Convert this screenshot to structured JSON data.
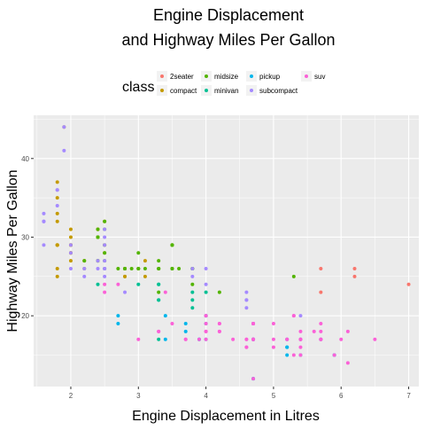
{
  "chart_data": {
    "type": "scatter",
    "title_lines": [
      "Engine Displacement",
      "and Highway Miles Per Gallon"
    ],
    "xlabel": "Engine Displacement in Litres",
    "ylabel": "Highway Miles Per Gallon",
    "xlim": [
      1.45,
      7.15
    ],
    "ylim": [
      11,
      45.5
    ],
    "x_ticks": [
      2,
      3,
      4,
      5,
      6,
      7
    ],
    "y_ticks": [
      20,
      30,
      40
    ],
    "grid": true,
    "legend": {
      "title": "class",
      "position": "top"
    },
    "series": [
      {
        "name": "2seater",
        "color": "#F8766D",
        "points": [
          [
            5.7,
            26
          ],
          [
            5.7,
            23
          ],
          [
            6.2,
            26
          ],
          [
            6.2,
            25
          ],
          [
            7.0,
            24
          ]
        ]
      },
      {
        "name": "compact",
        "color": "#C49A00",
        "points": [
          [
            1.8,
            29
          ],
          [
            1.8,
            29
          ],
          [
            2.0,
            31
          ],
          [
            2.0,
            30
          ],
          [
            2.8,
            26
          ],
          [
            2.8,
            26
          ],
          [
            3.1,
            27
          ],
          [
            1.8,
            26
          ],
          [
            1.8,
            25
          ],
          [
            2.0,
            28
          ],
          [
            2.0,
            27
          ],
          [
            2.8,
            25
          ],
          [
            2.8,
            25
          ],
          [
            3.1,
            25
          ],
          [
            2.2,
            26
          ],
          [
            2.2,
            27
          ],
          [
            2.4,
            30
          ],
          [
            2.4,
            31
          ],
          [
            3.0,
            26
          ],
          [
            1.8,
            29
          ],
          [
            1.8,
            29
          ],
          [
            2.0,
            28
          ],
          [
            2.0,
            29
          ],
          [
            2.8,
            26
          ],
          [
            1.9,
            44
          ],
          [
            2.0,
            29
          ],
          [
            2.5,
            29
          ],
          [
            1.8,
            37
          ],
          [
            1.8,
            35
          ],
          [
            2.0,
            29
          ],
          [
            1.8,
            33
          ],
          [
            1.8,
            32
          ],
          [
            2.0,
            29
          ],
          [
            2.0,
            28
          ],
          [
            2.0,
            29
          ],
          [
            2.4,
            27
          ],
          [
            2.4,
            31
          ],
          [
            2.5,
            32
          ],
          [
            2.5,
            28
          ]
        ]
      },
      {
        "name": "midsize",
        "color": "#53B400",
        "points": [
          [
            2.4,
            27
          ],
          [
            2.4,
            30
          ],
          [
            3.1,
            26
          ],
          [
            3.5,
            29
          ],
          [
            3.6,
            26
          ],
          [
            2.4,
            30
          ],
          [
            3.0,
            26
          ],
          [
            3.3,
            26
          ],
          [
            3.3,
            26
          ],
          [
            3.3,
            27
          ],
          [
            3.8,
            26
          ],
          [
            3.8,
            24
          ],
          [
            3.8,
            26
          ],
          [
            5.3,
            25
          ],
          [
            2.4,
            31
          ],
          [
            2.5,
            27
          ],
          [
            2.5,
            26
          ],
          [
            3.5,
            26
          ],
          [
            3.5,
            29
          ],
          [
            3.0,
            28
          ],
          [
            3.5,
            26
          ],
          [
            3.5,
            29
          ],
          [
            3.3,
            26
          ],
          [
            3.8,
            26
          ],
          [
            2.2,
            27
          ],
          [
            2.4,
            30
          ],
          [
            3.0,
            26
          ],
          [
            3.5,
            26
          ],
          [
            2.5,
            32
          ],
          [
            2.5,
            29
          ],
          [
            2.8,
            26
          ],
          [
            2.7,
            26
          ],
          [
            3.5,
            29
          ],
          [
            3.8,
            26
          ],
          [
            2.4,
            27
          ],
          [
            2.9,
            26
          ],
          [
            3.3,
            23
          ],
          [
            2.5,
            28
          ],
          [
            2.5,
            31
          ],
          [
            2.8,
            26
          ],
          [
            4.2,
            23
          ]
        ]
      },
      {
        "name": "minivan",
        "color": "#00C094",
        "points": [
          [
            2.4,
            24
          ],
          [
            3.0,
            24
          ],
          [
            3.3,
            22
          ],
          [
            3.3,
            22
          ],
          [
            3.3,
            24
          ],
          [
            3.3,
            24
          ],
          [
            3.3,
            17
          ],
          [
            3.8,
            22
          ],
          [
            3.8,
            21
          ],
          [
            3.8,
            23
          ],
          [
            4.0,
            23
          ]
        ]
      },
      {
        "name": "pickup",
        "color": "#00B6EB",
        "points": [
          [
            3.7,
            19
          ],
          [
            3.7,
            18
          ],
          [
            3.9,
            17
          ],
          [
            3.9,
            17
          ],
          [
            4.7,
            19
          ],
          [
            4.7,
            19
          ],
          [
            4.7,
            12
          ],
          [
            5.2,
            17
          ],
          [
            5.2,
            15
          ],
          [
            5.7,
            17
          ],
          [
            5.9,
            15
          ],
          [
            4.7,
            17
          ],
          [
            4.7,
            17
          ],
          [
            4.7,
            12
          ],
          [
            4.7,
            17
          ],
          [
            4.7,
            17
          ],
          [
            5.2,
            16
          ],
          [
            5.2,
            16
          ],
          [
            5.9,
            15
          ],
          [
            4.0,
            20
          ],
          [
            4.0,
            20
          ],
          [
            4.0,
            19
          ],
          [
            4.0,
            17
          ],
          [
            4.7,
            17
          ],
          [
            4.7,
            17
          ],
          [
            4.7,
            17
          ],
          [
            5.4,
            17
          ],
          [
            5.4,
            15
          ],
          [
            2.7,
            20
          ],
          [
            2.7,
            19
          ],
          [
            3.4,
            20
          ],
          [
            3.4,
            17
          ]
        ]
      },
      {
        "name": "subcompact",
        "color": "#A58AFF",
        "points": [
          [
            3.8,
            26
          ],
          [
            3.8,
            25
          ],
          [
            4.0,
            26
          ],
          [
            4.0,
            24
          ],
          [
            4.6,
            21
          ],
          [
            4.6,
            22
          ],
          [
            4.6,
            23
          ],
          [
            4.6,
            22
          ],
          [
            5.4,
            20
          ],
          [
            1.6,
            33
          ],
          [
            1.6,
            32
          ],
          [
            1.6,
            32
          ],
          [
            1.6,
            29
          ],
          [
            1.6,
            32
          ],
          [
            1.8,
            34
          ],
          [
            1.8,
            36
          ],
          [
            1.8,
            36
          ],
          [
            2.0,
            29
          ],
          [
            2.4,
            26
          ],
          [
            2.4,
            27
          ],
          [
            2.5,
            30
          ],
          [
            2.5,
            31
          ],
          [
            2.5,
            26
          ],
          [
            2.5,
            26
          ],
          [
            2.2,
            26
          ],
          [
            2.2,
            25
          ],
          [
            2.5,
            27
          ],
          [
            2.5,
            25
          ],
          [
            1.9,
            44
          ],
          [
            1.9,
            41
          ],
          [
            2.0,
            28
          ],
          [
            2.0,
            26
          ],
          [
            2.5,
            29
          ],
          [
            2.8,
            23
          ]
        ]
      },
      {
        "name": "suv",
        "color": "#FB61D7",
        "points": [
          [
            5.3,
            20
          ],
          [
            5.3,
            15
          ],
          [
            5.3,
            20
          ],
          [
            5.7,
            17
          ],
          [
            6.0,
            17
          ],
          [
            5.7,
            19
          ],
          [
            6.5,
            17
          ],
          [
            4.7,
            17
          ],
          [
            4.7,
            19
          ],
          [
            4.7,
            17
          ],
          [
            5.4,
            17
          ],
          [
            5.4,
            16
          ],
          [
            3.0,
            17
          ],
          [
            3.7,
            17
          ],
          [
            4.0,
            17
          ],
          [
            4.7,
            19
          ],
          [
            4.7,
            17
          ],
          [
            4.7,
            17
          ],
          [
            5.2,
            17
          ],
          [
            5.7,
            17
          ],
          [
            6.1,
            18
          ],
          [
            4.0,
            18
          ],
          [
            4.6,
            17
          ],
          [
            5.0,
            17
          ],
          [
            4.2,
            19
          ],
          [
            4.2,
            18
          ],
          [
            4.6,
            17
          ],
          [
            5.4,
            17
          ],
          [
            5.4,
            15
          ],
          [
            5.6,
            18
          ],
          [
            6.1,
            14
          ],
          [
            4.0,
            20
          ],
          [
            4.0,
            19
          ],
          [
            4.6,
            16
          ],
          [
            5.0,
            16
          ],
          [
            5.0,
            19
          ],
          [
            4.2,
            18
          ],
          [
            4.2,
            19
          ],
          [
            4.4,
            17
          ],
          [
            4.7,
            19
          ],
          [
            4.7,
            17
          ],
          [
            5.7,
            18
          ],
          [
            2.5,
            23
          ],
          [
            2.5,
            24
          ],
          [
            3.3,
            18
          ],
          [
            3.5,
            19
          ],
          [
            3.3,
            18
          ],
          [
            4.0,
            18
          ],
          [
            4.0,
            20
          ],
          [
            4.7,
            19
          ],
          [
            4.7,
            12
          ],
          [
            3.7,
            17
          ],
          [
            3.9,
            17
          ],
          [
            5.2,
            17
          ],
          [
            5.7,
            17
          ],
          [
            5.9,
            15
          ],
          [
            5.4,
            17
          ],
          [
            5.4,
            18
          ],
          [
            4.6,
            16
          ],
          [
            2.7,
            24
          ],
          [
            3.4,
            23
          ]
        ]
      }
    ]
  }
}
